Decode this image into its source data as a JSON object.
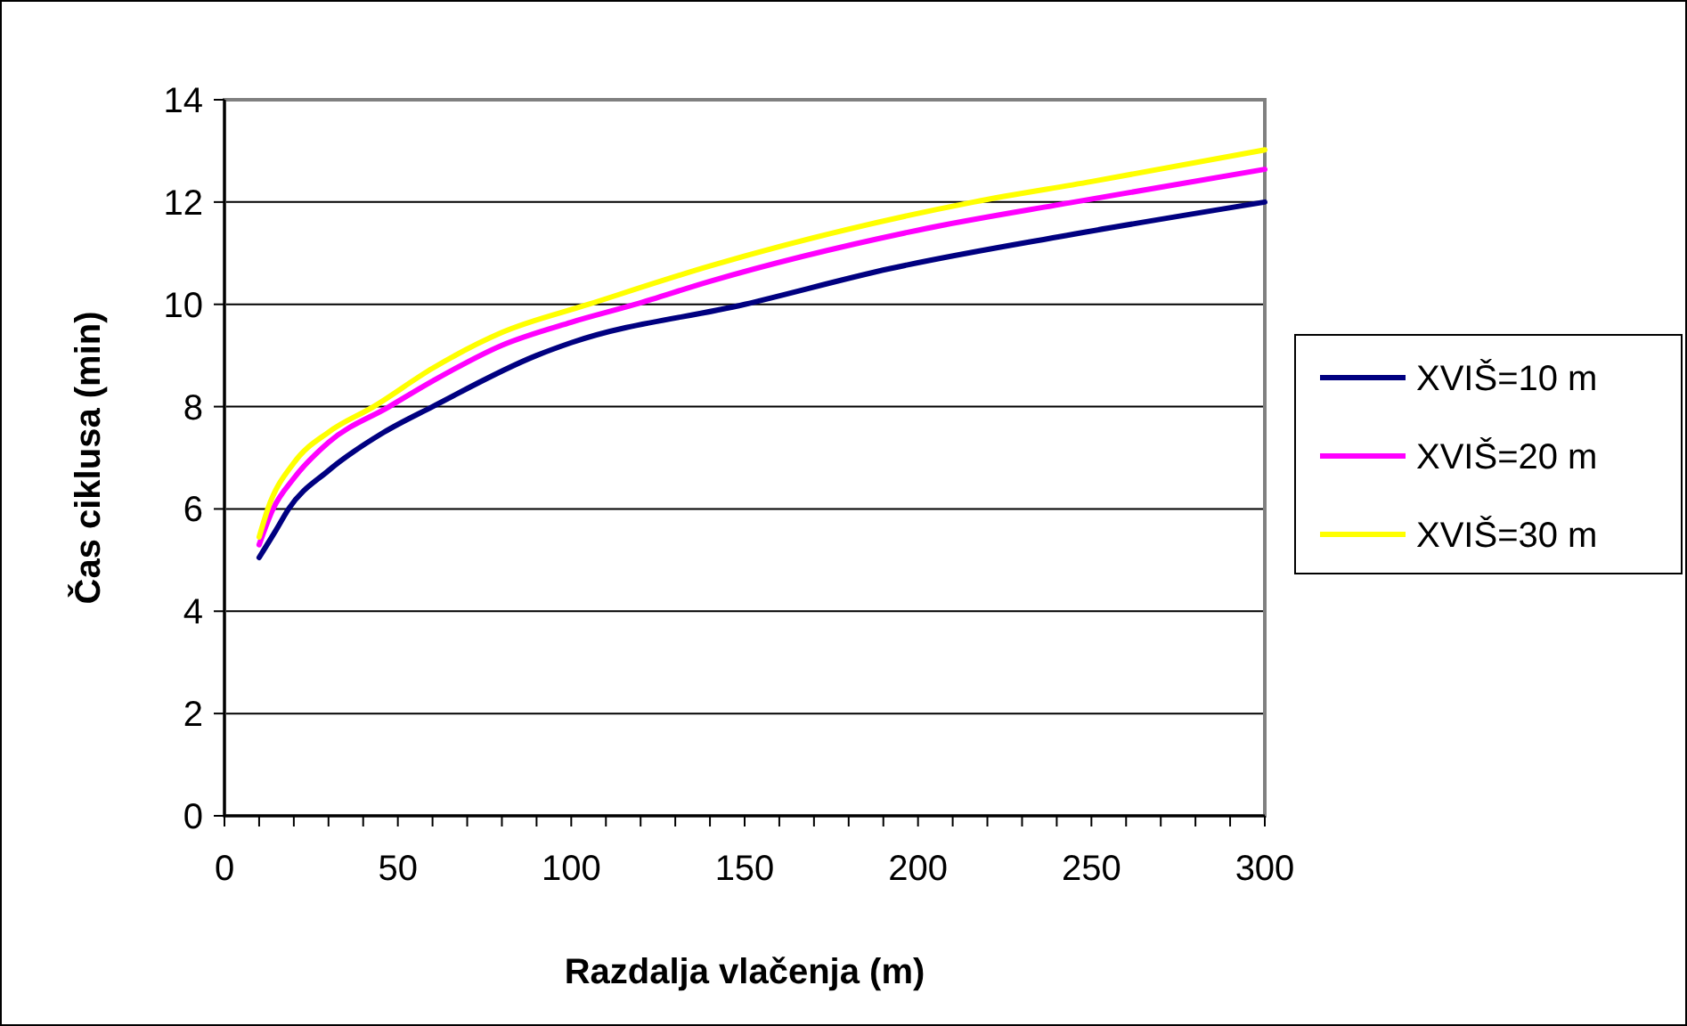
{
  "chart_data": {
    "type": "line",
    "xlabel": "Razdalja vlačenja (m)",
    "ylabel": "Čas ciklusa (min)",
    "xlim": [
      0,
      300
    ],
    "ylim": [
      0,
      14
    ],
    "xticks": [
      0,
      {
        "value": 10,
        "label": null
      },
      {
        "value": 20,
        "label": null
      },
      {
        "value": 30,
        "label": null
      },
      {
        "value": 40,
        "label": null
      },
      50,
      {
        "value": 60,
        "label": null
      },
      {
        "value": 70,
        "label": null
      },
      {
        "value": 80,
        "label": null
      },
      {
        "value": 90,
        "label": null
      },
      100,
      {
        "value": 110,
        "label": null
      },
      {
        "value": 120,
        "label": null
      },
      {
        "value": 130,
        "label": null
      },
      {
        "value": 140,
        "label": null
      },
      150,
      {
        "value": 160,
        "label": null
      },
      {
        "value": 170,
        "label": null
      },
      {
        "value": 180,
        "label": null
      },
      {
        "value": 190,
        "label": null
      },
      200,
      {
        "value": 210,
        "label": null
      },
      {
        "value": 220,
        "label": null
      },
      {
        "value": 230,
        "label": null
      },
      {
        "value": 240,
        "label": null
      },
      250,
      {
        "value": 260,
        "label": null
      },
      {
        "value": 270,
        "label": null
      },
      {
        "value": 280,
        "label": null
      },
      {
        "value": 290,
        "label": null
      },
      300
    ],
    "yticks": [
      0,
      2,
      4,
      6,
      8,
      10,
      12,
      14
    ],
    "grid": "y",
    "legend": "right",
    "marker": "none",
    "line_style": "solid",
    "series": [
      {
        "name": "XVIŠ=10 m",
        "color": "#000080",
        "x": [
          10,
          15,
          18.5,
          30,
          46,
          60,
          90,
          100,
          150,
          192,
          243,
          300
        ],
        "values": [
          5.05,
          5.6,
          6,
          6.75,
          7.5,
          8,
          9,
          9.25,
          10,
          10.7,
          11.35,
          12
        ]
      },
      {
        "name": "XVIŠ=20 m",
        "color": "#ff00ff",
        "x": [
          10,
          14,
          20,
          30,
          47.5,
          60,
          80,
          100,
          118.5,
          140,
          200,
          245,
          300
        ],
        "values": [
          5.3,
          6,
          6.6,
          7.3,
          8,
          8.5,
          9.2,
          9.65,
          10,
          10.45,
          11.45,
          12,
          12.64
        ]
      },
      {
        "name": "XVIŠ=30 m",
        "color": "#ffff00",
        "x": [
          10,
          12.5,
          20,
          30,
          43,
          60,
          80,
          105,
          140,
          216,
          250,
          300
        ],
        "values": [
          5.45,
          6,
          6.9,
          7.5,
          8,
          8.75,
          9.45,
          10,
          10.75,
          12,
          12.4,
          13.02
        ]
      }
    ]
  }
}
